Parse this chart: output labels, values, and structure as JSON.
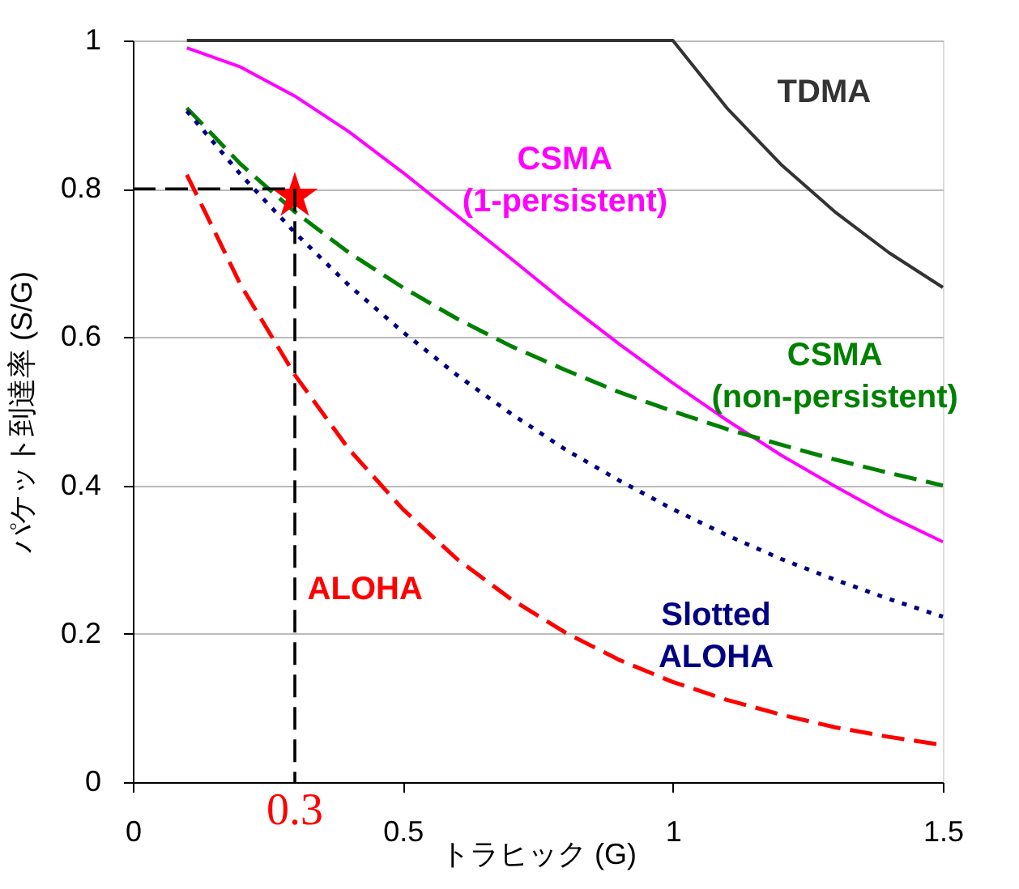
{
  "chart_data": {
    "type": "line",
    "xlabel": "トラヒック (G)",
    "ylabel": "パケット到達率 (S/G)",
    "xlim": [
      0,
      1.5
    ],
    "xticks": [
      0,
      0.5,
      1,
      1.5
    ],
    "ylim": [
      0,
      1
    ],
    "yticks": [
      0,
      0.2,
      0.4,
      0.6,
      0.8,
      1
    ],
    "grid": "y",
    "annotations": [
      "0.3"
    ],
    "series": [
      {
        "name": "TDMA",
        "color": "#333333",
        "line_style": "solid",
        "x": [
          0.1,
          1.0,
          1.1,
          1.2,
          1.3,
          1.4,
          1.5
        ],
        "values": [
          1,
          1,
          0.909,
          0.833,
          0.769,
          0.714,
          0.667
        ]
      },
      {
        "name": "CSMA\n(1-persistent)",
        "color": "#ff00ff",
        "line_style": "solid",
        "x": [
          0.1,
          0.2,
          0.3,
          0.4,
          0.5,
          0.6,
          0.7,
          0.8,
          0.9,
          1.0,
          1.1,
          1.2,
          1.3,
          1.4,
          1.5
        ],
        "values": [
          0.99,
          0.964,
          0.925,
          0.877,
          0.822,
          0.764,
          0.706,
          0.647,
          0.591,
          0.538,
          0.488,
          0.441,
          0.399,
          0.359,
          0.324
        ]
      },
      {
        "name": "CSMA\n(non-persistent)",
        "color": "#008000",
        "line_style": "dashed",
        "x": [
          0.1,
          0.2,
          0.3,
          0.4,
          0.5,
          0.6,
          0.7,
          0.8,
          0.9,
          1.0,
          1.1,
          1.2,
          1.3,
          1.4,
          1.5
        ],
        "values": [
          0.909,
          0.833,
          0.769,
          0.714,
          0.667,
          0.625,
          0.588,
          0.556,
          0.526,
          0.5,
          0.476,
          0.455,
          0.435,
          0.417,
          0.4
        ]
      },
      {
        "name": "Slotted\nALOHA",
        "color": "#000080",
        "line_style": "dotted",
        "x": [
          0.1,
          0.2,
          0.3,
          0.4,
          0.5,
          0.6,
          0.7,
          0.8,
          0.9,
          1.0,
          1.1,
          1.2,
          1.3,
          1.4,
          1.5
        ],
        "values": [
          0.905,
          0.819,
          0.741,
          0.67,
          0.607,
          0.549,
          0.497,
          0.449,
          0.407,
          0.368,
          0.333,
          0.301,
          0.273,
          0.247,
          0.223
        ]
      },
      {
        "name": "ALOHA",
        "color": "#ff0000",
        "line_style": "dashed",
        "x": [
          0.1,
          0.2,
          0.3,
          0.4,
          0.5,
          0.6,
          0.7,
          0.8,
          0.9,
          1.0,
          1.1,
          1.2,
          1.3,
          1.4,
          1.5
        ],
        "values": [
          0.819,
          0.67,
          0.549,
          0.449,
          0.368,
          0.301,
          0.247,
          0.202,
          0.165,
          0.135,
          0.111,
          0.091,
          0.074,
          0.061,
          0.05
        ]
      },
      {
        "type": "scatter",
        "color": "#ff0000",
        "marker": "star",
        "x": [
          0.3
        ],
        "values": [
          0.79
        ]
      },
      {
        "type": "line",
        "color": "#000000",
        "line_style": "dashed",
        "x": [
          0,
          0.3,
          0.3
        ],
        "values": [
          0.8,
          0.8,
          0
        ]
      }
    ]
  }
}
